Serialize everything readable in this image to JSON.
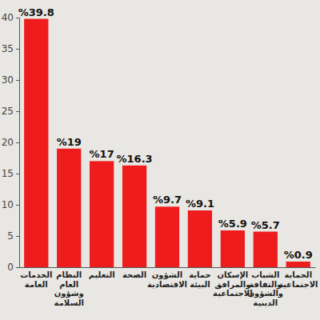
{
  "chart_data": {
    "type": "bar",
    "categories": [
      "الخدمات العامة",
      "النظام العام وشؤون السلامة",
      "التعليم",
      "الصحة",
      "الشؤون الاقتصادية",
      "حماية البيئة",
      "الإسكان والمرافق الاجتماعية",
      "الشباب والثقافة والشؤون الدينية",
      "الحماية الاجتماعية"
    ],
    "values": [
      39.8,
      19,
      17,
      16.3,
      9.7,
      9.1,
      5.9,
      5.7,
      0.9
    ],
    "value_labels": [
      "%39.8",
      "%19",
      "%17",
      "%16.3",
      "%9.7",
      "%9.1",
      "%5.9",
      "%5.7",
      "%0.9"
    ],
    "data_labels": true,
    "color": "#ee1c1c",
    "ylim": [
      0,
      40
    ],
    "yticks": [
      0,
      5,
      10,
      15,
      20,
      25,
      30,
      35,
      40
    ],
    "grid": false
  }
}
